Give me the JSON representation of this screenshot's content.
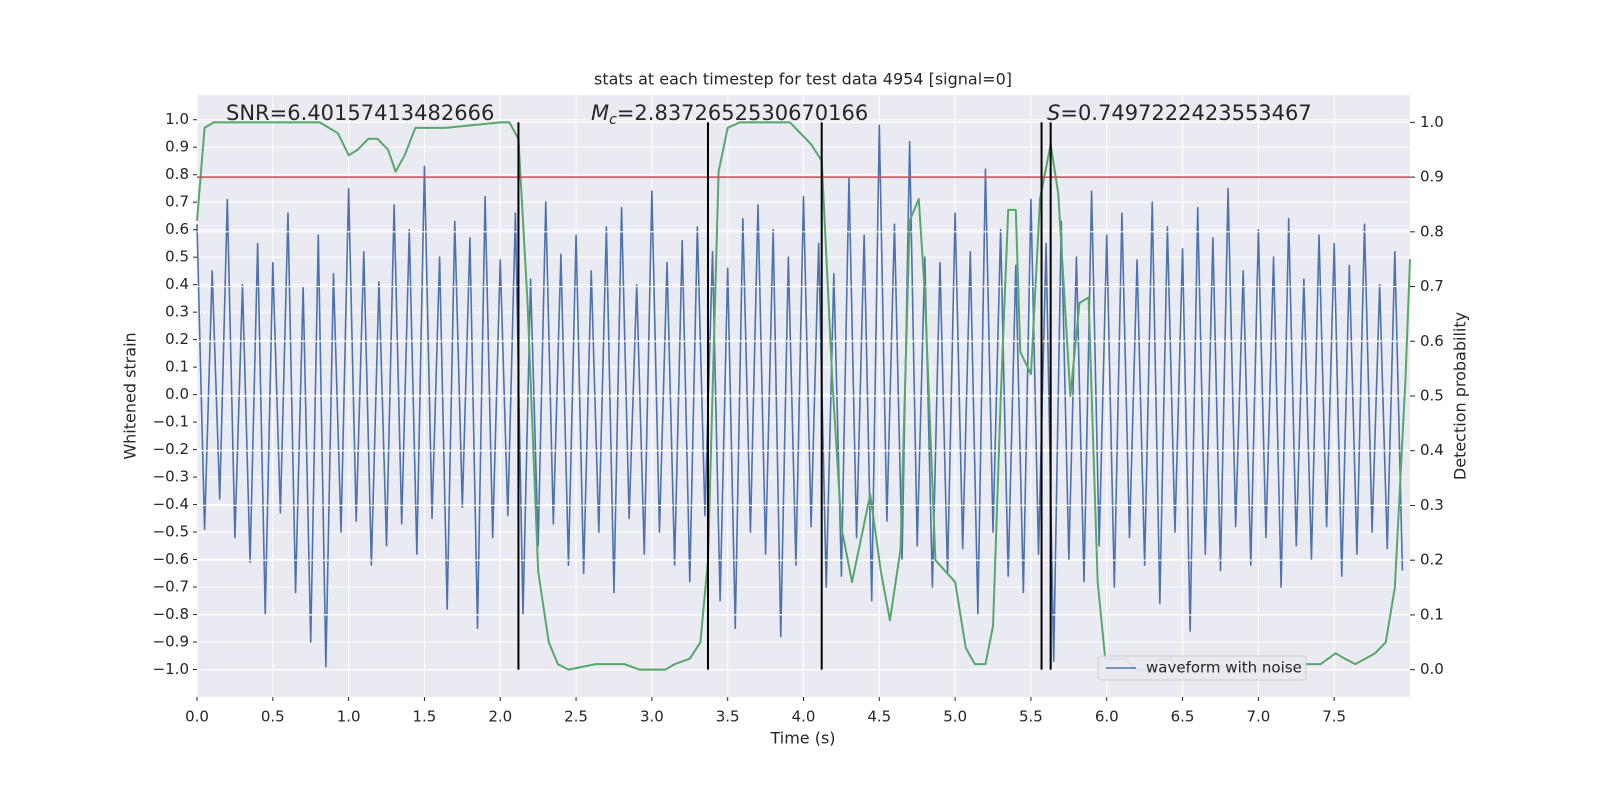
{
  "chart_data": {
    "type": "line",
    "title": "stats at each timestep for test data 4954 [signal=0]",
    "xlabel": "Time (s)",
    "ylabel": "Whitened strain",
    "y2label": "Detection probability",
    "xlim": [
      0,
      8
    ],
    "ylim": [
      -1.1,
      1.09
    ],
    "y2lim": [
      -0.05,
      1.05
    ],
    "xticks": [
      {
        "value": 0,
        "label": "0.0"
      },
      0.5,
      {
        "value": 1,
        "label": "1.0"
      },
      1.5,
      {
        "value": 2,
        "label": "2.0"
      },
      2.5,
      {
        "value": 3,
        "label": "3.0"
      },
      3.5,
      {
        "value": 4,
        "label": "4.0"
      },
      4.5,
      {
        "value": 5,
        "label": "5.0"
      },
      5.5,
      {
        "value": 6,
        "label": "6.0"
      },
      6.5,
      {
        "value": 7,
        "label": "7.0"
      },
      7.5
    ],
    "yticks": [
      {
        "value": -1,
        "label": "−1.0"
      },
      {
        "value": -0.9,
        "label": "−0.9"
      },
      {
        "value": -0.8,
        "label": "−0.8"
      },
      {
        "value": -0.7,
        "label": "−0.7"
      },
      {
        "value": -0.6,
        "label": "−0.6"
      },
      {
        "value": -0.5,
        "label": "−0.5"
      },
      {
        "value": -0.4,
        "label": "−0.4"
      },
      {
        "value": -0.3,
        "label": "−0.3"
      },
      {
        "value": -0.2,
        "label": "−0.2"
      },
      {
        "value": -0.1,
        "label": "−0.1"
      },
      {
        "value": 0,
        "label": "0.0"
      },
      0.1,
      0.2,
      0.3,
      0.4,
      0.5,
      0.6,
      0.7,
      0.8,
      0.9,
      {
        "value": 1,
        "label": "1.0"
      }
    ],
    "y2ticks": [
      {
        "value": 0,
        "label": "0.0"
      },
      0.1,
      0.2,
      0.3,
      0.4,
      0.5,
      0.6,
      0.7,
      0.8,
      0.9,
      {
        "value": 1,
        "label": "1.0"
      }
    ],
    "grid": true,
    "legend": "lower right",
    "annotations": [
      {
        "text": "SNR=6.40157413482666"
      },
      {
        "text": "M",
        "subscript": "c",
        "text_after": "=2.8372652530670166"
      },
      {
        "text": "S",
        "text_after": "=0.7497222423553467"
      }
    ],
    "series": [
      {
        "name": "waveform with noise",
        "color": "#4c72b0",
        "x": [
          0,
          0.05,
          0.1,
          0.15,
          0.2,
          0.25,
          0.3,
          0.35,
          0.4,
          0.45,
          0.5,
          0.55,
          0.6,
          0.65,
          0.7,
          0.75,
          0.8,
          0.85,
          0.9,
          0.95,
          1,
          1.05,
          1.1,
          1.15,
          1.2,
          1.25,
          1.3,
          1.35,
          1.4,
          1.45,
          1.5,
          1.55,
          1.6,
          1.65,
          1.7,
          1.75,
          1.8,
          1.85,
          1.9,
          1.95,
          2,
          2.05,
          2.1,
          2.15,
          2.2,
          2.25,
          2.3,
          2.35,
          2.4,
          2.45,
          2.5,
          2.55,
          2.6,
          2.65,
          2.7,
          2.75,
          2.8,
          2.85,
          2.9,
          2.95,
          3,
          3.05,
          3.1,
          3.15,
          3.2,
          3.25,
          3.3,
          3.35,
          3.4,
          3.45,
          3.5,
          3.55,
          3.6,
          3.65,
          3.7,
          3.75,
          3.8,
          3.85,
          3.9,
          3.95,
          4,
          4.05,
          4.1,
          4.15,
          4.2,
          4.25,
          4.3,
          4.35,
          4.4,
          4.45,
          4.5,
          4.55,
          4.6,
          4.65,
          4.7,
          4.75,
          4.8,
          4.85,
          4.9,
          4.95,
          5,
          5.05,
          5.1,
          5.15,
          5.2,
          5.25,
          5.3,
          5.35,
          5.4,
          5.45,
          5.5,
          5.55,
          5.6,
          5.65,
          5.7,
          5.75,
          5.8,
          5.85,
          5.9,
          5.95,
          6,
          6.05,
          6.1,
          6.15,
          6.2,
          6.25,
          6.3,
          6.35,
          6.4,
          6.45,
          6.5,
          6.55,
          6.6,
          6.65,
          6.7,
          6.75,
          6.8,
          6.85,
          6.9,
          6.95,
          7,
          7.05,
          7.1,
          7.15,
          7.2,
          7.25,
          7.3,
          7.35,
          7.4,
          7.45,
          7.5,
          7.55,
          7.6,
          7.65,
          7.7,
          7.75,
          7.8,
          7.85,
          7.9,
          7.95
        ],
        "values": [
          0.62,
          -0.49,
          0.45,
          -0.38,
          0.71,
          -0.52,
          0.4,
          -0.61,
          0.55,
          -0.8,
          0.48,
          -0.43,
          0.66,
          -0.72,
          0.39,
          -0.9,
          0.58,
          -0.99,
          0.44,
          -0.5,
          0.75,
          -0.46,
          0.52,
          -0.62,
          0.41,
          -0.55,
          0.69,
          -0.47,
          0.6,
          -0.58,
          0.83,
          -0.45,
          0.5,
          -0.78,
          0.63,
          -0.41,
          0.57,
          -0.85,
          0.72,
          -0.52,
          0.49,
          -0.44,
          0.66,
          -0.8,
          0.42,
          -0.55,
          0.7,
          -0.47,
          0.51,
          -0.62,
          0.58,
          -0.65,
          0.45,
          -0.5,
          0.61,
          -0.72,
          0.68,
          -0.45,
          0.4,
          -0.58,
          0.74,
          -0.5,
          0.48,
          -0.62,
          0.56,
          -0.68,
          0.61,
          -0.44,
          0.52,
          -0.75,
          0.46,
          -0.85,
          0.64,
          -0.5,
          0.69,
          -0.58,
          0.6,
          -0.88,
          0.5,
          -0.62,
          0.72,
          -0.48,
          0.55,
          -0.7,
          0.44,
          -0.66,
          0.79,
          -0.52,
          0.58,
          -0.75,
          0.98,
          -0.46,
          0.62,
          -0.6,
          0.92,
          -0.55,
          0.5,
          -0.7,
          0.48,
          -0.65,
          0.66,
          -0.56,
          0.52,
          -0.8,
          0.82,
          -0.5,
          0.6,
          -0.66,
          0.47,
          -0.72,
          0.71,
          -0.58,
          0.55,
          -0.97,
          0.63,
          -0.6,
          0.5,
          -0.68,
          0.74,
          -0.55,
          0.58,
          -0.7,
          0.66,
          -0.52,
          0.49,
          -0.62,
          0.7,
          -0.76,
          0.61,
          -0.5,
          0.53,
          -0.86,
          0.68,
          -0.58,
          0.57,
          -0.64,
          0.75,
          -0.48,
          0.45,
          -0.62,
          0.6,
          -0.52,
          0.5,
          -0.7,
          0.64,
          -0.55,
          0.42,
          -0.6,
          0.58,
          -0.48,
          0.55,
          -0.66,
          0.47,
          -0.58,
          0.62,
          -0.5,
          0.4,
          -0.56,
          0.52,
          -0.64
        ]
      },
      {
        "color": "#55a868",
        "axis": "y2",
        "x": [
          0,
          0.05,
          0.11,
          0.81,
          0.93,
          1,
          1.06,
          1.13,
          1.19,
          1.26,
          1.31,
          1.37,
          1.44,
          1.64,
          2,
          2.06,
          2.12,
          2.18,
          2.25,
          2.32,
          2.38,
          2.45,
          2.63,
          2.82,
          2.92,
          3.09,
          3.15,
          3.25,
          3.32,
          3.37,
          3.44,
          3.5,
          3.58,
          3.91,
          3.98,
          4.05,
          4.12,
          4.19,
          4.25,
          4.32,
          4.44,
          4.51,
          4.57,
          4.64,
          4.7,
          4.76,
          4.8,
          4.87,
          5,
          5.07,
          5.13,
          5.2,
          5.25,
          5.3,
          5.35,
          5.4,
          5.43,
          5.5,
          5.56,
          5.63,
          5.68,
          5.76,
          5.82,
          5.88,
          5.94,
          5.99,
          6.12,
          6.19,
          6.29,
          6.35,
          6.42,
          6.48,
          6.68,
          6.88,
          7.14,
          7.28,
          7.41,
          7.51,
          7.57,
          7.64,
          7.77,
          7.84,
          7.9,
          7.97,
          8
        ],
        "values": [
          0.82,
          0.99,
          1,
          1,
          0.98,
          0.94,
          0.95,
          0.97,
          0.97,
          0.95,
          0.91,
          0.94,
          0.99,
          0.99,
          1,
          1,
          0.97,
          0.67,
          0.18,
          0.05,
          0.01,
          0,
          0.01,
          0.01,
          0,
          0,
          0.01,
          0.02,
          0.05,
          0.2,
          0.91,
          0.99,
          1,
          1,
          0.98,
          0.96,
          0.93,
          0.53,
          0.26,
          0.16,
          0.32,
          0.18,
          0.09,
          0.22,
          0.82,
          0.86,
          0.69,
          0.2,
          0.16,
          0.04,
          0.01,
          0.01,
          0.08,
          0.49,
          0.84,
          0.84,
          0.58,
          0.54,
          0.86,
          0.96,
          0.87,
          0.5,
          0.67,
          0.68,
          0.16,
          0.02,
          0.02,
          0,
          0,
          0.02,
          0.02,
          0,
          0.01,
          0,
          0,
          0.01,
          0.01,
          0.03,
          0.02,
          0.01,
          0.03,
          0.05,
          0.15,
          0.53,
          0.75
        ]
      }
    ],
    "hlines": [
      {
        "value": 0.9,
        "axis": "y2",
        "color": "#c44e52"
      }
    ],
    "vlines": {
      "x": [
        2.12,
        3.37,
        4.12,
        5.57,
        5.63
      ],
      "color": "#000000",
      "from": 0,
      "to": 1,
      "axis": "y2"
    }
  }
}
